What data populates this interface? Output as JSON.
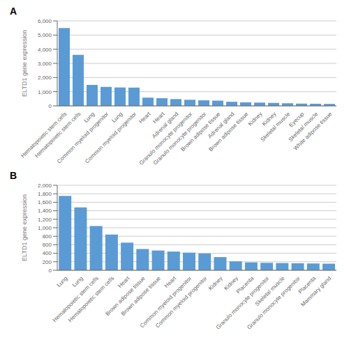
{
  "chart_data": [
    {
      "type": "bar",
      "title": "A",
      "categories": [
        "Hematopoietic stem cells",
        "Hematopoietic stem cells",
        "Lung",
        "Common myeloid progenitor",
        "Lung",
        "Common myeloid progenitor",
        "Heart",
        "Heart",
        "Adrenal gland",
        "Granulo monocyte progenitor",
        "Granulo monocyte progenitor",
        "Brown adipose tissue",
        "Adrenal gland",
        "Brown adipose tissue",
        "Kidney",
        "Kidney",
        "Skeletal muscle",
        "Eyecup",
        "Skeletal muscle",
        "White adipose tissue"
      ],
      "values": [
        5500,
        3600,
        1480,
        1340,
        1300,
        1290,
        580,
        540,
        480,
        430,
        390,
        370,
        290,
        250,
        230,
        210,
        185,
        160,
        150,
        140
      ],
      "y_label": "ELTD1 gene expression",
      "ylim": [
        0,
        6000
      ],
      "yticks": [
        0,
        {
          "value": 1000,
          "label": "1,000"
        },
        {
          "value": 2000,
          "label": "2,000"
        },
        {
          "value": 3000,
          "label": "3,000"
        },
        {
          "value": 4000,
          "label": "4,000"
        },
        {
          "value": 5000,
          "label": "5,000"
        },
        {
          "value": 6000,
          "label": "6,000"
        }
      ],
      "color": "#5b9bd5",
      "grid": true
    },
    {
      "type": "bar",
      "title": "B",
      "categories": [
        "Lung",
        "Lung",
        "Hematopoietic stem cells",
        "Hematopoietic stem cells",
        "Heart",
        "Brown adipose tissue",
        "Brown adipose tissue",
        "Heart",
        "Common myeloid progenitor",
        "Common myeloid progenitor",
        "Kidney",
        "Kidney",
        "Placenta",
        "Granulo monocyte progenitor",
        "Skeletal muscle",
        "Granulo monocyte progenitor",
        "Placenta",
        "Mammary gland"
      ],
      "values": [
        1750,
        1480,
        1040,
        840,
        650,
        500,
        465,
        440,
        415,
        395,
        310,
        210,
        185,
        175,
        170,
        165,
        160,
        155
      ],
      "y_label": "ELTD1 gene expression",
      "ylim": [
        0,
        2000
      ],
      "yticks": [
        0,
        200,
        400,
        600,
        800,
        {
          "value": 1000,
          "label": "1,000"
        },
        {
          "value": 1200,
          "label": "1,200"
        },
        {
          "value": 1400,
          "label": "1,400"
        },
        {
          "value": 1600,
          "label": "1,600"
        },
        {
          "value": 1800,
          "label": "1,800"
        },
        {
          "value": 2000,
          "label": "2,000"
        }
      ],
      "color": "#5b9bd5",
      "grid": true
    }
  ]
}
